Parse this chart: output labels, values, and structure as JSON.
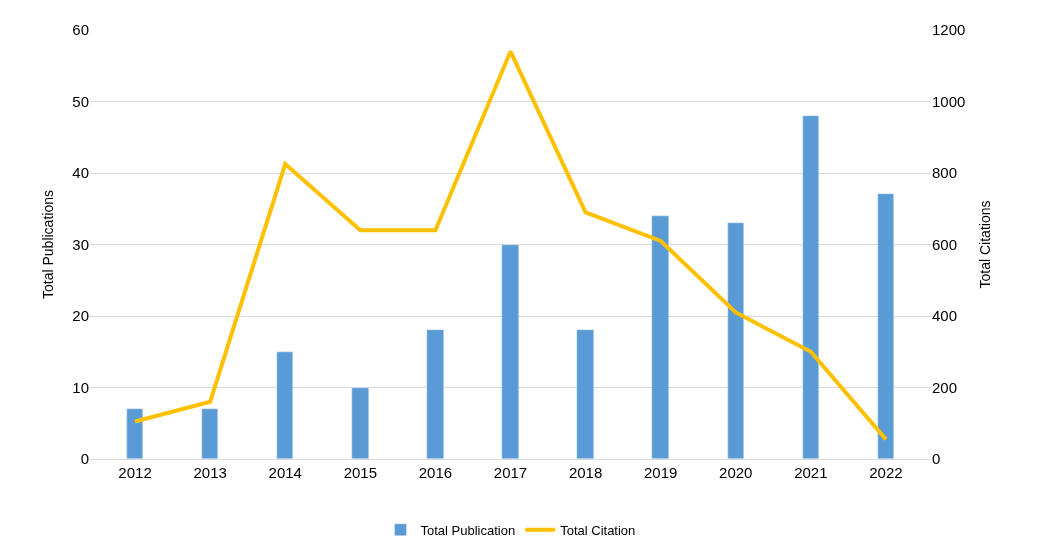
{
  "chart_data": {
    "type": "bar",
    "categories": [
      "2012",
      "2013",
      "2014",
      "2015",
      "2016",
      "2017",
      "2018",
      "2019",
      "2020",
      "2021",
      "2022"
    ],
    "ylabel": "Total Publications",
    "y2label": "Total Citations",
    "series": [
      {
        "name": "Total Publication",
        "color": "#5b9bd5",
        "values": [
          7,
          7,
          15,
          10,
          18,
          30,
          18,
          34,
          33,
          48,
          37
        ]
      },
      {
        "name": "Total Citation",
        "type": "line",
        "axis": "y2",
        "color": "#ffc000",
        "values": [
          105,
          160,
          825,
          640,
          640,
          1140,
          690,
          610,
          410,
          300,
          55
        ]
      }
    ],
    "ylim": [
      0,
      60
    ],
    "yticks": [
      0,
      10,
      20,
      30,
      40,
      50,
      60
    ],
    "y2lim": [
      0,
      1200
    ],
    "y2ticks": [
      0,
      200,
      400,
      600,
      800,
      1000,
      1200
    ],
    "grid": "y",
    "legend": "bottom",
    "marker": "none",
    "line_style": "solid"
  }
}
